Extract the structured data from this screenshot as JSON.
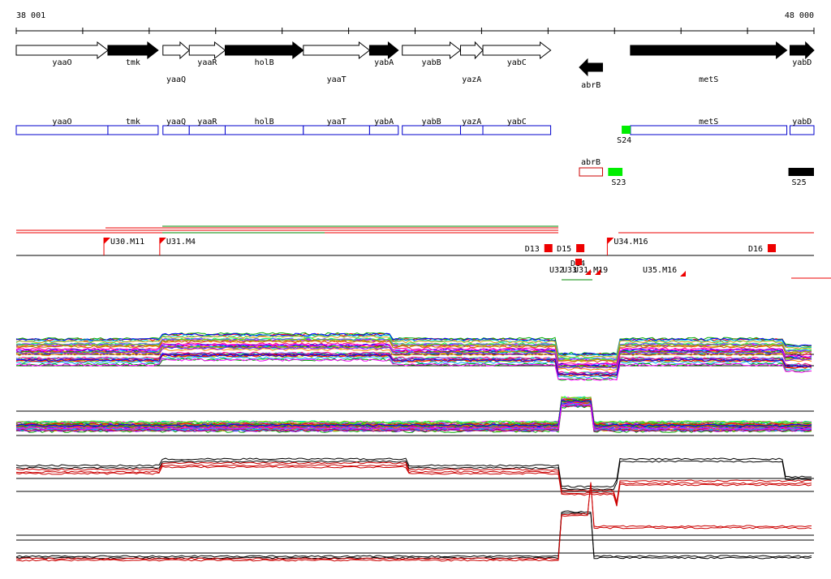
{
  "ruler": {
    "start_label": "38 001",
    "end_label": "48 000",
    "start": 38001,
    "end": 48000
  },
  "colors": {
    "gene_fill_forward": "#ffffff",
    "gene_fill_reverse": "#000000",
    "cds_box": "#0000cc",
    "marker_green": "#00ee00",
    "marker_black": "#000000",
    "segment_red": "#ee0000",
    "rna_box": "#cc0000"
  },
  "genes": [
    {
      "label": "yaaO",
      "start": 38001,
      "end": 39150,
      "strand": "+",
      "fill": "white",
      "row": 0
    },
    {
      "label": "tmk",
      "start": 39150,
      "end": 39780,
      "strand": "+",
      "fill": "black",
      "row": 0
    },
    {
      "label": "yaaQ",
      "start": 39840,
      "end": 40170,
      "strand": "+",
      "fill": "white",
      "row": 1
    },
    {
      "label": "yaaR",
      "start": 40170,
      "end": 40620,
      "strand": "+",
      "fill": "white",
      "row": 0
    },
    {
      "label": "holB",
      "start": 40620,
      "end": 41600,
      "strand": "+",
      "fill": "black",
      "row": 0
    },
    {
      "label": "yaaT",
      "start": 41600,
      "end": 42430,
      "strand": "+",
      "fill": "white",
      "row": 1
    },
    {
      "label": "yabA",
      "start": 42430,
      "end": 42790,
      "strand": "+",
      "fill": "black",
      "row": 0
    },
    {
      "label": "yabB",
      "start": 42840,
      "end": 43570,
      "strand": "+",
      "fill": "white",
      "row": 0
    },
    {
      "label": "yazA",
      "start": 43570,
      "end": 43850,
      "strand": "+",
      "fill": "white",
      "row": 1
    },
    {
      "label": "yabC",
      "start": 43850,
      "end": 44700,
      "strand": "+",
      "fill": "white",
      "row": 0
    },
    {
      "label": "abrB",
      "start": 45060,
      "end": 45350,
      "strand": "-",
      "fill": "black",
      "row": 2
    },
    {
      "label": "metS",
      "start": 45700,
      "end": 47660,
      "strand": "+",
      "fill": "black",
      "row": 1
    },
    {
      "label": "yabD",
      "start": 47700,
      "end": 48000,
      "strand": "+",
      "fill": "black",
      "row": 0
    }
  ],
  "cds_boxes": [
    {
      "label": "yaaO",
      "start": 38001,
      "end": 39150
    },
    {
      "label": "tmk",
      "start": 39150,
      "end": 39780
    },
    {
      "label": "yaaQ",
      "start": 39840,
      "end": 40170
    },
    {
      "label": "yaaR",
      "start": 40170,
      "end": 40620
    },
    {
      "label": "holB",
      "start": 40620,
      "end": 41600
    },
    {
      "label": "yaaT",
      "start": 41600,
      "end": 42430
    },
    {
      "label": "yabA",
      "start": 42430,
      "end": 42790
    },
    {
      "label": "yabB",
      "start": 42840,
      "end": 43570
    },
    {
      "label": "yazA",
      "start": 43570,
      "end": 43850
    },
    {
      "label": "yabC",
      "start": 43850,
      "end": 44700
    },
    {
      "label": "metS",
      "start": 45700,
      "end": 47660
    },
    {
      "label": "yabD",
      "start": 47700,
      "end": 48000
    }
  ],
  "markers": [
    {
      "label": "S24",
      "start": 45590,
      "end": 45700,
      "color": "green",
      "row": 0
    },
    {
      "label": "S23",
      "start": 45420,
      "end": 45600,
      "color": "green",
      "row": 1
    },
    {
      "label": "S25",
      "start": 47680,
      "end": 48000,
      "color": "black",
      "row": 1
    }
  ],
  "rna_boxes": [
    {
      "label": "abrB",
      "start": 45060,
      "end": 45350
    }
  ],
  "signals_up": [
    {
      "label": "U30.M11",
      "pos": 39100
    },
    {
      "label": "U31.M4",
      "pos": 39800
    },
    {
      "label": "U34.M16",
      "pos": 45410
    }
  ],
  "signals_down": [
    {
      "label": "D13",
      "pos": 44600
    },
    {
      "label": "D15",
      "pos": 45000
    },
    {
      "label": "D16",
      "pos": 47400
    }
  ],
  "overlap_labels": [
    "U32",
    "U33",
    "D14",
    "U31.M19"
  ],
  "other_signal_labels": [
    "U35.M16"
  ]
}
